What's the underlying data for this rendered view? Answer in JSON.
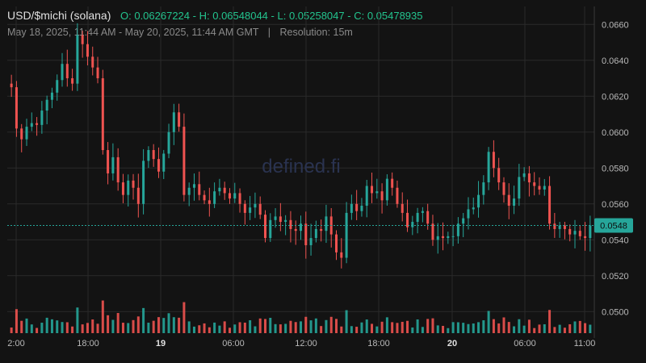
{
  "header": {
    "pair": "USD/$michi (solana)",
    "open": "O: 0.06267224",
    "high": "H: 0.06548044",
    "low": "L: 0.05258047",
    "close": "C: 0.05478935",
    "date_range": "May 18, 2025, 11:44 AM - May 20, 2025, 11:44 AM GMT",
    "separator": "|",
    "resolution": "Resolution: 15m"
  },
  "watermark": "defined.fi",
  "current_price_label": "0.0548",
  "colors": {
    "up": "#26a69a",
    "down": "#ef5350",
    "background": "#131313",
    "grid": "#2a2a2a",
    "price_line": "#26a69a"
  },
  "chart_data": {
    "type": "candlestick",
    "ylim": [
      0.0488,
      0.067
    ],
    "y_ticks": [
      "0.0660",
      "0.0640",
      "0.0620",
      "0.0600",
      "0.0580",
      "0.0560",
      "0.0540",
      "0.0520",
      "0.0500"
    ],
    "y_tick_values": [
      0.066,
      0.064,
      0.062,
      0.06,
      0.058,
      0.056,
      0.054,
      0.052,
      0.05
    ],
    "x_ticks": [
      {
        "label": "2:00",
        "bold": false
      },
      {
        "label": "18:00",
        "bold": false
      },
      {
        "label": "19",
        "bold": true
      },
      {
        "label": "06:00",
        "bold": false
      },
      {
        "label": "12:00",
        "bold": false
      },
      {
        "label": "18:00",
        "bold": false
      },
      {
        "label": "20",
        "bold": true
      },
      {
        "label": "06:00",
        "bold": false
      },
      {
        "label": "11:00",
        "bold": false
      }
    ],
    "current_price": 0.0548,
    "close_prices": [
      0.0625,
      0.0602,
      0.0596,
      0.0603,
      0.0605,
      0.0604,
      0.0612,
      0.0618,
      0.0622,
      0.0629,
      0.0638,
      0.063,
      0.0627,
      0.0654,
      0.0649,
      0.0642,
      0.0636,
      0.063,
      0.059,
      0.0577,
      0.0586,
      0.0572,
      0.0565,
      0.0573,
      0.0569,
      0.056,
      0.0584,
      0.059,
      0.0585,
      0.0578,
      0.0588,
      0.06,
      0.0611,
      0.0603,
      0.0565,
      0.0569,
      0.0571,
      0.0565,
      0.0562,
      0.056,
      0.0567,
      0.0569,
      0.0566,
      0.0563,
      0.0566,
      0.056,
      0.0555,
      0.0558,
      0.056,
      0.0554,
      0.0541,
      0.0551,
      0.0553,
      0.055,
      0.0551,
      0.0546,
      0.0545,
      0.0549,
      0.0537,
      0.0541,
      0.0546,
      0.0545,
      0.0553,
      0.0543,
      0.0533,
      0.053,
      0.0555,
      0.056,
      0.0556,
      0.0559,
      0.057,
      0.0566,
      0.0567,
      0.0562,
      0.0574,
      0.0569,
      0.056,
      0.0555,
      0.0547,
      0.055,
      0.0555,
      0.0556,
      0.0549,
      0.054,
      0.0542,
      0.0541,
      0.0542,
      0.0542,
      0.0549,
      0.0552,
      0.0557,
      0.0558,
      0.0565,
      0.0572,
      0.0589,
      0.058,
      0.0572,
      0.0565,
      0.0559,
      0.0563,
      0.0575,
      0.0577,
      0.0572,
      0.057,
      0.0568,
      0.057,
      0.0549,
      0.0546,
      0.0548,
      0.0546,
      0.0543,
      0.0545,
      0.0542,
      0.0541,
      0.0548
    ],
    "volume_bars": 115
  }
}
